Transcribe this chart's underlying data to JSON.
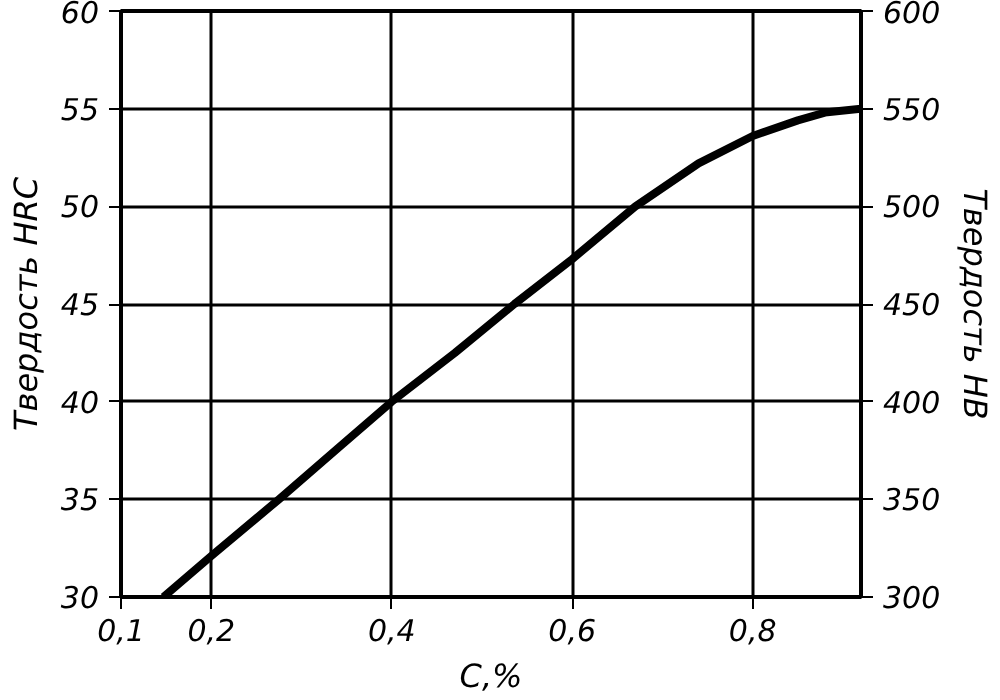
{
  "chart_data": {
    "type": "line",
    "xlabel": "C,%",
    "ylabel": "Твердость HRC",
    "y2label": "Твердость НВ",
    "x": [
      0.147,
      0.2,
      0.275,
      0.34,
      0.4,
      0.47,
      0.536,
      0.6,
      0.67,
      0.74,
      0.8,
      0.85,
      0.88,
      0.92
    ],
    "series": [
      {
        "color": "#000000",
        "values": [
          30,
          32.1,
          35,
          37.6,
          40,
          42.5,
          45,
          47.3,
          50,
          52.2,
          53.6,
          54.4,
          54.8,
          55
        ]
      }
    ],
    "xlim": [
      0.1,
      0.92
    ],
    "xticks": [
      {
        "value": 0.1,
        "label": "0,1"
      },
      {
        "value": 0.2,
        "label": "0,2"
      },
      {
        "value": 0.4,
        "label": "0,4"
      },
      {
        "value": 0.6,
        "label": "0,6"
      },
      {
        "value": 0.8,
        "label": "0,8"
      }
    ],
    "ylim": [
      30,
      60
    ],
    "yticks": [
      30,
      35,
      40,
      45,
      50,
      55,
      60
    ],
    "y2lim": [
      300,
      600
    ],
    "y2ticks": [
      300,
      350,
      400,
      450,
      500,
      550,
      600
    ],
    "grid": true,
    "marker": "none",
    "line_style": "solid"
  }
}
